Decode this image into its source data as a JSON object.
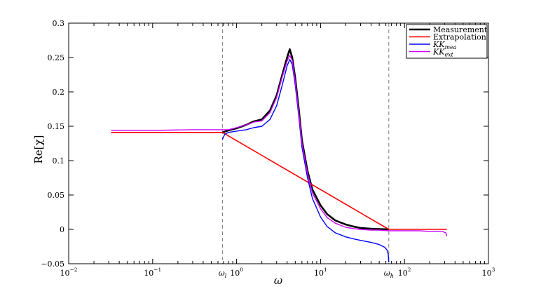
{
  "chart_data": {
    "type": "line",
    "xscale": "log",
    "xlim": [
      0.01,
      1000
    ],
    "ylim": [
      -0.05,
      0.3
    ],
    "xlabel": "ω",
    "ylabel": "Re[χ]",
    "grid": false,
    "legend_position": "top-right",
    "x_ticks": [
      {
        "base": "10",
        "exp": "−2"
      },
      {
        "base": "10",
        "exp": "−1"
      },
      {
        "base": "10",
        "exp": "0"
      },
      {
        "base": "10",
        "exp": "1"
      },
      {
        "base": "10",
        "exp": "2"
      },
      {
        "base": "10",
        "exp": "3"
      }
    ],
    "y_ticks": [
      "−0.05",
      "0",
      "0.05",
      "0.1",
      "0.15",
      "0.2",
      "0.25",
      "0.3"
    ],
    "vlines": [
      {
        "x": 0.68,
        "label": "ω",
        "label_sub": "l"
      },
      {
        "x": 65,
        "label": "ω",
        "label_sub": "h"
      }
    ],
    "series": [
      {
        "name": "Measurement",
        "color": "#000000",
        "x": [
          0.68,
          0.8,
          1.0,
          1.3,
          1.6,
          2.0,
          2.5,
          3.0,
          3.5,
          4.0,
          4.3,
          4.6,
          5.0,
          5.5,
          6.0,
          7.0,
          8.0,
          10,
          12,
          15,
          20,
          25,
          30,
          40,
          50,
          65
        ],
        "y": [
          0.141,
          0.144,
          0.147,
          0.152,
          0.157,
          0.16,
          0.173,
          0.195,
          0.225,
          0.25,
          0.262,
          0.25,
          0.22,
          0.175,
          0.13,
          0.085,
          0.058,
          0.035,
          0.022,
          0.013,
          0.007,
          0.004,
          0.002,
          0.001,
          0.0005,
          0.0
        ]
      },
      {
        "name": "Extrapolation",
        "color": "#ff0000",
        "x": [
          0.032,
          0.1,
          0.3,
          0.68,
          65,
          100,
          200,
          320
        ],
        "y": [
          0.141,
          0.141,
          0.141,
          0.141,
          0.0,
          0.0,
          0.0,
          0.0
        ]
      },
      {
        "name": "KK",
        "name_sub": "mea",
        "color": "#0000ff",
        "x": [
          0.68,
          0.72,
          0.8,
          1.0,
          1.3,
          1.6,
          2.0,
          2.5,
          3.0,
          3.5,
          4.0,
          4.3,
          4.6,
          5.0,
          5.5,
          6.0,
          7.0,
          8.0,
          10,
          12,
          15,
          20,
          25,
          30,
          40,
          50,
          58,
          62,
          64,
          65
        ],
        "y": [
          0.131,
          0.138,
          0.141,
          0.143,
          0.145,
          0.148,
          0.15,
          0.16,
          0.18,
          0.21,
          0.238,
          0.247,
          0.24,
          0.21,
          0.165,
          0.12,
          0.075,
          0.045,
          0.018,
          0.004,
          -0.005,
          -0.011,
          -0.014,
          -0.016,
          -0.019,
          -0.022,
          -0.026,
          -0.03,
          -0.036,
          -0.048
        ]
      },
      {
        "name": "KK",
        "name_sub": "ext",
        "color": "#cc00ff",
        "x": [
          0.032,
          0.1,
          0.3,
          0.68,
          0.8,
          1.0,
          1.3,
          1.6,
          2.0,
          2.5,
          3.0,
          3.5,
          4.0,
          4.3,
          4.6,
          5.0,
          5.5,
          6.0,
          7.0,
          8.0,
          10,
          12,
          15,
          20,
          25,
          30,
          40,
          50,
          65,
          100,
          150,
          200,
          280,
          310,
          320
        ],
        "y": [
          0.144,
          0.144,
          0.145,
          0.145,
          0.145,
          0.148,
          0.152,
          0.156,
          0.158,
          0.17,
          0.192,
          0.222,
          0.245,
          0.253,
          0.246,
          0.215,
          0.17,
          0.126,
          0.081,
          0.053,
          0.03,
          0.017,
          0.009,
          0.003,
          0.001,
          0.0,
          -0.001,
          -0.001,
          -0.002,
          -0.002,
          -0.002,
          -0.003,
          -0.003,
          -0.005,
          -0.01
        ]
      }
    ]
  }
}
